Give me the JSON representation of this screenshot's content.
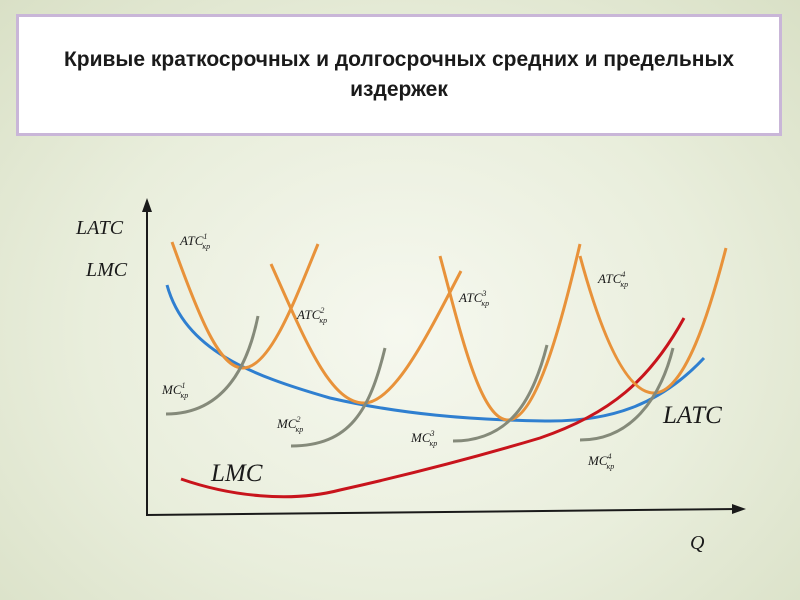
{
  "title": "Кривые краткосрочных и долгосрочных средних и предельных издержек",
  "colors": {
    "atc": "#e8923a",
    "mc": "#858a7a",
    "latc": "#2f7fd0",
    "lmc": "#c8141c",
    "axis": "#1a1a1a"
  },
  "axis": {
    "y_label_1": "LATC",
    "y_label_2": "LMC",
    "x_label": "Q"
  },
  "curves": {
    "atc": [
      {
        "base": "ATC",
        "sup": "1",
        "sub": "кр"
      },
      {
        "base": "ATC",
        "sup": "2",
        "sub": "кр"
      },
      {
        "base": "ATC",
        "sup": "3",
        "sub": "кр"
      },
      {
        "base": "ATC",
        "sup": "4",
        "sub": "кр"
      }
    ],
    "mc": [
      {
        "base": "MC",
        "sup": "1",
        "sub": "кр"
      },
      {
        "base": "MC",
        "sup": "2",
        "sub": "кр"
      },
      {
        "base": "MC",
        "sup": "3",
        "sub": "кр"
      },
      {
        "base": "MC",
        "sup": "4",
        "sub": "кр"
      }
    ],
    "latc_label": "LATC",
    "lmc_label": "LMC"
  }
}
